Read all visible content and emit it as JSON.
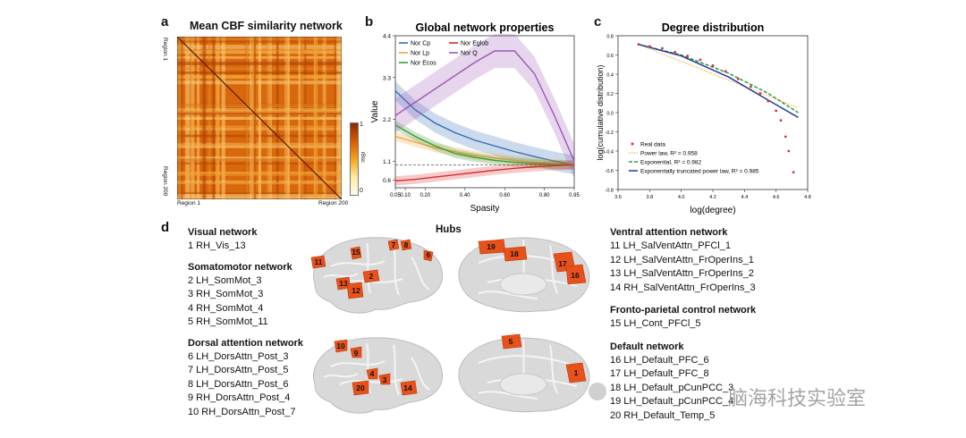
{
  "panel_a": {
    "label": "a",
    "title": "Mean CBF similarity network",
    "region_top": "Region 1",
    "region_bottom": "Region 200",
    "x_left": "Region 1",
    "x_right": "Region 200",
    "colorbar": {
      "max": "1",
      "min": "0",
      "label": "rBsc"
    }
  },
  "panel_b": {
    "label": "b"
  },
  "panel_c": {
    "label": "c"
  },
  "panel_d": {
    "label": "d",
    "hubs_label": "Hubs"
  },
  "chart_data": [
    {
      "type": "line",
      "title": "Global network properties",
      "xlabel": "Spasity",
      "ylabel": "Value",
      "xlim": [
        0.05,
        0.95
      ],
      "ylim": [
        0.4,
        4.4
      ],
      "x_ticks": [
        "0.05",
        "0.10",
        "0.20",
        "0.40",
        "0.60",
        "0.80",
        "0.95"
      ],
      "y_ticks": [
        "0.6",
        "1.1",
        "2.2",
        "3.3",
        "4.4"
      ],
      "reference_line": 1.0,
      "x": [
        0.05,
        0.15,
        0.25,
        0.35,
        0.45,
        0.55,
        0.65,
        0.75,
        0.85,
        0.95
      ],
      "series": [
        {
          "name": "Nor Cp",
          "color": "#2f6db3",
          "values": [
            2.95,
            2.45,
            2.1,
            1.85,
            1.65,
            1.5,
            1.35,
            1.22,
            1.1,
            1.0
          ]
        },
        {
          "name": "Nor Lp",
          "color": "#f2a33a",
          "values": [
            1.75,
            1.6,
            1.45,
            1.35,
            1.25,
            1.18,
            1.12,
            1.07,
            1.03,
            1.0
          ]
        },
        {
          "name": "Nor Ecos",
          "color": "#3a9b3a",
          "values": [
            2.05,
            1.75,
            1.5,
            1.3,
            1.2,
            1.12,
            1.07,
            1.03,
            1.01,
            1.0
          ]
        },
        {
          "name": "Nor Eglob",
          "color": "#d62d2d",
          "values": [
            0.58,
            0.62,
            0.68,
            0.74,
            0.8,
            0.86,
            0.91,
            0.95,
            0.98,
            1.0
          ]
        },
        {
          "name": "Nor Q",
          "color": "#9b59b6",
          "values": [
            2.3,
            2.65,
            3.0,
            3.35,
            3.7,
            4.0,
            4.0,
            3.4,
            2.3,
            1.1
          ]
        }
      ]
    },
    {
      "type": "line",
      "title": "Degree distribution",
      "xlabel": "log(degree)",
      "ylabel": "log(cumulative distribution)",
      "xlim": [
        3.6,
        4.8
      ],
      "ylim": [
        -0.8,
        0.8
      ],
      "x_ticks": [
        "3.6",
        "3.8",
        "4.0",
        "4.2",
        "4.4",
        "4.6",
        "4.8"
      ],
      "y_ticks": [
        "0.8",
        "0.6",
        "0.4",
        "0.2",
        "0.0",
        "-0.2",
        "-0.4",
        "-0.6",
        "-0.8"
      ],
      "scatter": {
        "name": "Real data",
        "color": "#e03030",
        "x": [
          3.73,
          3.8,
          3.88,
          3.96,
          4.04,
          4.12,
          4.2,
          4.28,
          4.36,
          4.44,
          4.5,
          4.55,
          4.6,
          4.63,
          4.66,
          4.68,
          4.71
        ],
        "y": [
          0.71,
          0.69,
          0.67,
          0.63,
          0.59,
          0.55,
          0.49,
          0.43,
          0.35,
          0.27,
          0.2,
          0.12,
          0.02,
          -0.08,
          -0.25,
          -0.4,
          -0.62
        ]
      },
      "fits": [
        {
          "name": "Power law, R² = 0.958",
          "color": "#f2c26b",
          "dash": "dotted",
          "x": [
            3.73,
            4.74
          ],
          "y": [
            0.71,
            0.05
          ]
        },
        {
          "name": "Exponential, R² = 0.982",
          "color": "#2e9b3a",
          "dash": "dashed",
          "x": [
            3.73,
            4.0,
            4.3,
            4.55,
            4.74
          ],
          "y": [
            0.71,
            0.6,
            0.41,
            0.2,
            0.0
          ]
        },
        {
          "name": "Exponentially truncated power law, R² = 0.985",
          "color": "#1f3b9b",
          "dash": "solid",
          "x": [
            3.73,
            4.0,
            4.3,
            4.55,
            4.74
          ],
          "y": [
            0.71,
            0.59,
            0.37,
            0.13,
            -0.05
          ]
        }
      ]
    }
  ],
  "networks_left": [
    {
      "title": "Visual network",
      "items": [
        "1 RH_Vis_13"
      ]
    },
    {
      "title": "Somatomotor network",
      "items": [
        "2 LH_SomMot_3",
        "3 RH_SomMot_3",
        "4 RH_SomMot_4",
        "5 RH_SomMot_11"
      ]
    },
    {
      "title": "Dorsal attention network",
      "items": [
        "6 LH_DorsAttn_Post_3",
        "7 LH_DorsAttn_Post_5",
        "8 LH_DorsAttn_Post_6",
        "9 RH_DorsAttn_Post_4",
        "10 RH_DorsAttn_Post_7"
      ]
    }
  ],
  "networks_right": [
    {
      "title": "Ventral attention network",
      "items": [
        "11  LH_SalVentAttn_PFCl_1",
        "12  LH_SalVentAttn_FrOperIns_1",
        "13  LH_SalVentAttn_FrOperIns_2",
        "14  RH_SalVentAttn_FrOperIns_3"
      ]
    },
    {
      "title": "Fronto-parietal control network",
      "items": [
        "15  LH_Cont_PFCl_5"
      ]
    },
    {
      "title": "Default network",
      "items": [
        "16  LH_Default_PFC_6",
        "17  LH_Default_PFC_8",
        "18  LH_Default_pCunPCC_3",
        "19  LH_Default_pCunPCC_4",
        "20  RH_Default_Temp_5"
      ]
    }
  ],
  "brain_labels": {
    "lh_lateral": [
      "15",
      "7",
      "8",
      "6",
      "11",
      "2",
      "13",
      "12"
    ],
    "lh_medial": [
      "19",
      "18",
      "17",
      "16"
    ],
    "rh_lateral": [
      "10",
      "9",
      "4",
      "3",
      "20",
      "14"
    ],
    "rh_medial": [
      "5",
      "1"
    ]
  },
  "watermark": {
    "text": "· 脑海科技实验室"
  }
}
